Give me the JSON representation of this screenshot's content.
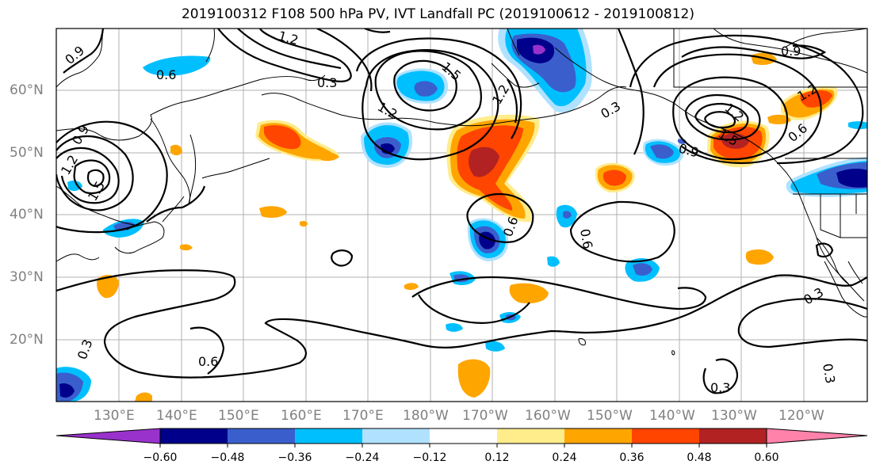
{
  "title": "2019100312 F108 500 hPa PV, IVT Landfall PC (2019100612 - 2019100812)",
  "lat_labels": [
    "60°N",
    "50°N",
    "40°N",
    "30°N",
    "20°N"
  ],
  "lon_labels": [
    "130°E",
    "140°E",
    "150°E",
    "160°E",
    "170°E",
    "180°W",
    "170°W",
    "160°W",
    "150°W",
    "140°W",
    "130°W",
    "120°W"
  ],
  "contour_labels": [
    "0.9",
    "0.6",
    "1.2",
    "1.5",
    "1.2",
    "1.5",
    "1.2",
    "0.9",
    "1.2",
    "1.5",
    "0.6",
    "0.3",
    "0.9",
    "1.2",
    "0.6",
    "0.6",
    "0.9",
    "0.3",
    "0.3",
    "0.6",
    "0.3",
    "0.3",
    "0.3",
    "1.2"
  ],
  "colorbar": {
    "colors": [
      "#9932cc",
      "#00008b",
      "#3a5fcd",
      "#00bfff",
      "#b0e2ff",
      "#ffffff",
      "#ffec8b",
      "#ffa500",
      "#ff4500",
      "#b22222",
      "#ff82ab"
    ],
    "tick_labels": [
      "−0.60",
      "−0.48",
      "−0.36",
      "−0.24",
      "−0.12",
      "0.12",
      "0.24",
      "0.36",
      "0.48",
      "0.60"
    ]
  }
}
